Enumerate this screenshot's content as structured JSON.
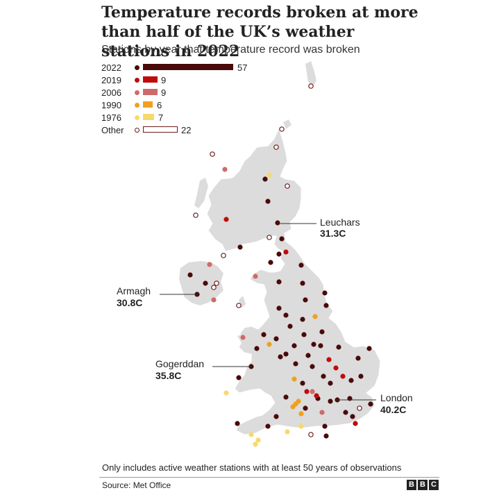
{
  "title": "Temperature records broken at more than half of the UK’s weather stations in 2022",
  "subtitle": "Stations by year that temperature record was broken",
  "legend": [
    {
      "year": "2022",
      "count": 57,
      "color": "#4a0a0a",
      "outline": false
    },
    {
      "year": "2019",
      "count": 9,
      "color": "#c10b0b",
      "outline": false
    },
    {
      "year": "2006",
      "count": 9,
      "color": "#cf6a6a",
      "outline": false
    },
    {
      "year": "1990",
      "count": 6,
      "color": "#f0a01e",
      "outline": false
    },
    {
      "year": "1976",
      "count": 7,
      "color": "#f7d96b",
      "outline": false
    },
    {
      "year": "Other",
      "count": 22,
      "color": "#6b1a1a",
      "outline": true
    }
  ],
  "callouts": [
    {
      "name": "Leuchars",
      "value": "31.3C"
    },
    {
      "name": "Armagh",
      "value": "30.8C"
    },
    {
      "name": "Gogerddan",
      "value": "35.8C"
    },
    {
      "name": "London",
      "value": "40.2C"
    }
  ],
  "footnote": "Only includes active weather stations with at least 50 years of observations",
  "source": "Source: Met Office",
  "logo": [
    "B",
    "B",
    "C"
  ]
}
